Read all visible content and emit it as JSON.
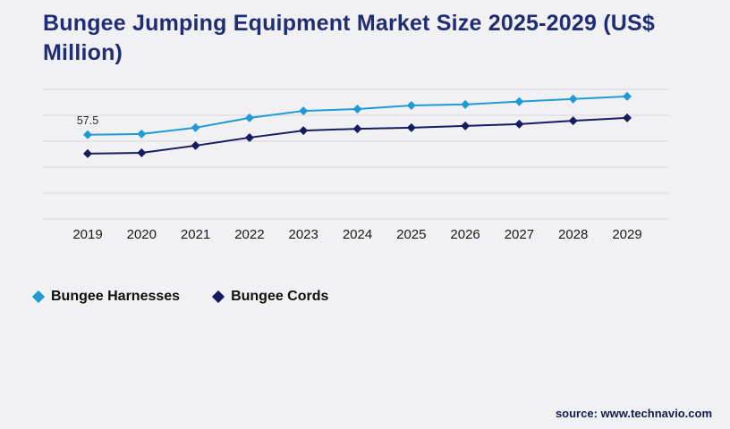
{
  "page": {
    "title": "Bungee Jumping Equipment Market Size 2025-2029 (US$ Million)",
    "source": "source: www.technavio.com"
  },
  "colors": {
    "background": "#f1f1f4",
    "title": "#202d73",
    "grid": "#d8d8dd",
    "axis_label": "#1a1a1a",
    "annotation": "#2a2a2a",
    "source": "#101d4f"
  },
  "chart_data": {
    "type": "line",
    "title": "Bungee Jumping Equipment Market Size 2025-2029 (US$ Million)",
    "xlabel": "",
    "ylabel": "",
    "x": [
      2019,
      2020,
      2021,
      2022,
      2023,
      2024,
      2025,
      2026,
      2027,
      2028,
      2029
    ],
    "series": [
      {
        "name": "Bungee Harnesses",
        "color": "#1f9ad6",
        "marker": "diamond",
        "values": [
          57.5,
          57.8,
          60.2,
          64.0,
          66.7,
          67.4,
          68.8,
          69.2,
          70.3,
          71.3,
          72.3
        ]
      },
      {
        "name": "Bungee Cords",
        "color": "#151c62",
        "marker": "diamond",
        "values": [
          50.2,
          50.5,
          53.3,
          56.4,
          59.1,
          59.8,
          60.2,
          60.9,
          61.6,
          62.9,
          64.0
        ]
      }
    ],
    "ylim": [
      25,
      75
    ],
    "grid": true,
    "gridline_count": 6,
    "legend_position": "bottom-left",
    "annotations": [
      {
        "series": "Bungee Harnesses",
        "x": 2019,
        "text": "57.5"
      }
    ]
  }
}
